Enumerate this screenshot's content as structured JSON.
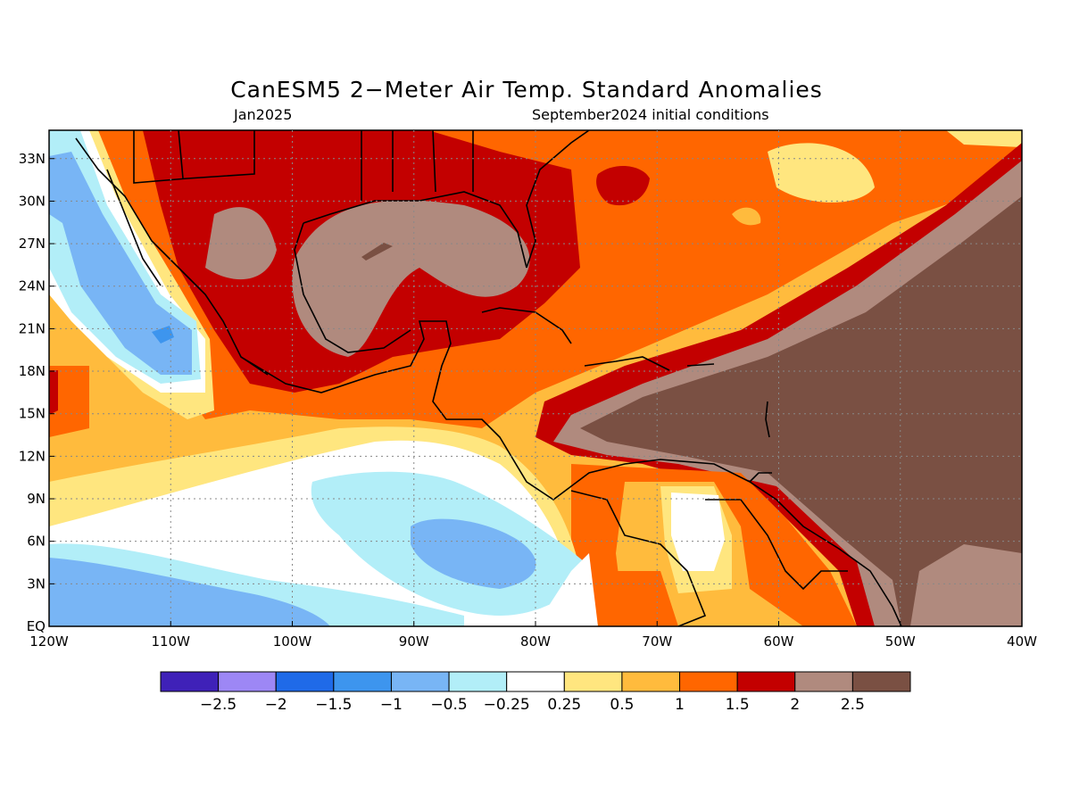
{
  "title": "CanESM5 2−Meter Air Temp. Standard Anomalies",
  "valid_month": "Jan2025",
  "initial_conditions": "September2024 initial conditions",
  "map": {
    "region": "Gulf of Mexico, Caribbean and Central America",
    "lon_range": [
      -120,
      -40
    ],
    "lat_range": [
      0,
      35
    ],
    "grid": true
  },
  "lat_ticks": [
    "EQ",
    "3N",
    "6N",
    "9N",
    "12N",
    "15N",
    "18N",
    "21N",
    "24N",
    "27N",
    "30N",
    "33N"
  ],
  "lon_ticks": [
    "120W",
    "110W",
    "100W",
    "90W",
    "80W",
    "70W",
    "60W",
    "50W",
    "40W"
  ],
  "colorbar": {
    "colors": [
      "#3f21b8",
      "#9d87f5",
      "#1f6ae8",
      "#3d95ee",
      "#78b5f5",
      "#b2eef8",
      "#ffffff",
      "#ffe67f",
      "#ffbb3d",
      "#ff6600",
      "#c30000",
      "#b08a7e",
      "#7a5043"
    ],
    "labels": [
      "−2.5",
      "−2",
      "−1.5",
      "−1",
      "−0.5",
      "−0.25",
      "0.25",
      "0.5",
      "1",
      "1.5",
      "2",
      "2.5"
    ]
  }
}
